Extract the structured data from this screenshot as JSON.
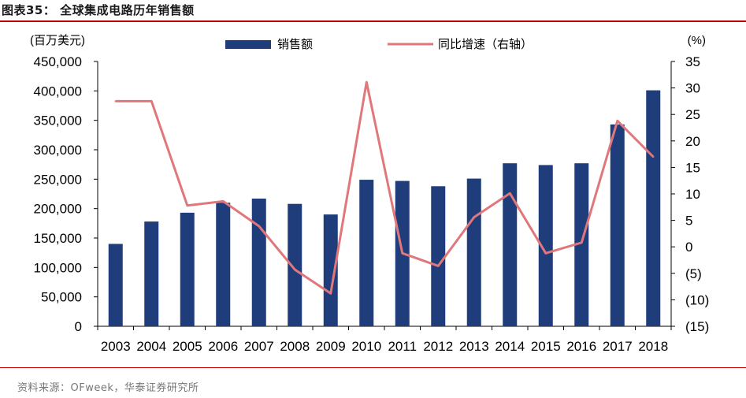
{
  "header": {
    "title": "图表35：  全球集成电路历年销售额"
  },
  "footer": {
    "source": "资料来源：OFweek，华泰证券研究所"
  },
  "colors": {
    "bar": "#1f3d7a",
    "line": "#e0777a",
    "accent": "#c00000"
  },
  "chart_data": {
    "type": "bar",
    "categories": [
      "2003",
      "2004",
      "2005",
      "2006",
      "2007",
      "2008",
      "2009",
      "2010",
      "2011",
      "2012",
      "2013",
      "2014",
      "2015",
      "2016",
      "2017",
      "2018"
    ],
    "series": [
      {
        "name": "销售额",
        "type": "bar",
        "axis": "left",
        "values": [
          140000,
          178000,
          193000,
          210000,
          217000,
          208000,
          190000,
          249000,
          247000,
          238000,
          251000,
          277000,
          274000,
          277000,
          343000,
          401000
        ]
      },
      {
        "name": "同比增速（右轴）",
        "type": "line",
        "axis": "right",
        "values": [
          27.5,
          27.5,
          7.8,
          8.6,
          3.9,
          -4.3,
          -8.8,
          31.1,
          -1.2,
          -3.6,
          5.6,
          10.1,
          -1.2,
          0.8,
          23.8,
          17.0
        ]
      }
    ],
    "ylabel": "(百万美元)",
    "y2label": "(%)",
    "ylim": [
      0,
      450000
    ],
    "y2lim": [
      -15,
      35
    ],
    "yticks": [
      "0",
      "50,000",
      "100,000",
      "150,000",
      "200,000",
      "250,000",
      "300,000",
      "350,000",
      "400,000",
      "450,000"
    ],
    "y2ticks": [
      "(15)",
      "(10)",
      "(5)",
      "0",
      "5",
      "10",
      "15",
      "20",
      "25",
      "30",
      "35"
    ],
    "legend": "top-center",
    "grid": false
  }
}
